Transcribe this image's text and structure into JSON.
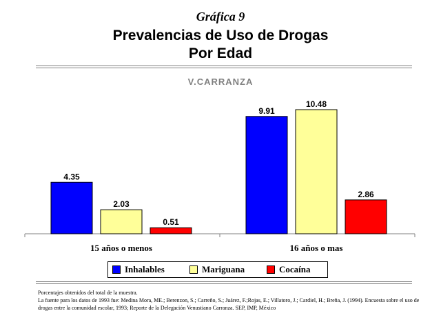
{
  "header": {
    "label": "Gráfica 9",
    "title_line1": "Prevalencias de Uso de Drogas",
    "title_line2": "Por Edad",
    "subtitle": "V.CARRANZA"
  },
  "legend": [
    {
      "label": "Inhalables",
      "color": "#0000ff"
    },
    {
      "label": "Mariguana",
      "color": "#ffff99"
    },
    {
      "label": "Cocaína",
      "color": "#ff0000"
    }
  ],
  "footer": {
    "line1": "Porcentajes obtenidos del total de la muestra.",
    "line2": "La fuente para los datos de 1993 fue: Medina Mora, ME.; Berenzon, S.; Carreño, S.; Juárez, F.;Rojas, E.; Villatoro, J.; Cardiel, H.; Breña, J. (1994). Encuesta sobre el uso de drogas entre la comunidad escolar, 1993; Reporte de la Delegación Venustiano Carranza. SEP, IMP, México"
  },
  "chart_data": {
    "type": "bar",
    "title": "Prevalencias de Uso de Drogas Por Edad",
    "subtitle": "V.CARRANZA",
    "categories": [
      "15 años o menos",
      "16 años o mas"
    ],
    "series": [
      {
        "name": "Inhalables",
        "values": [
          4.35,
          9.91
        ],
        "color": "#0000ff"
      },
      {
        "name": "Mariguana",
        "values": [
          2.03,
          10.48
        ],
        "color": "#ffff99"
      },
      {
        "name": "Cocaína",
        "values": [
          0.51,
          2.86
        ],
        "color": "#ff0000"
      }
    ],
    "ylim": [
      0,
      10.48
    ],
    "grid": false,
    "legend_position": "bottom"
  }
}
